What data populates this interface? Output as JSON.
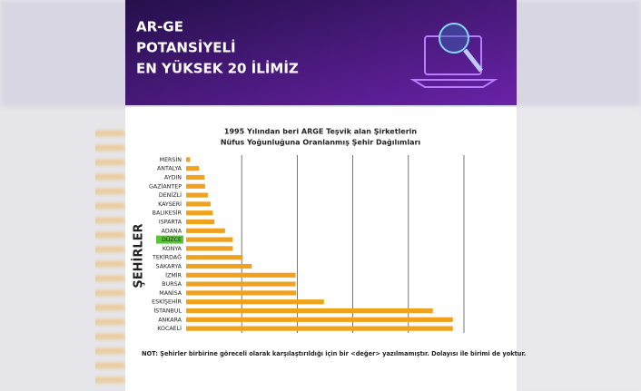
{
  "header": {
    "title": [
      "AR-GE",
      "POTANSİYELİ",
      "EN YÜKSEK 20 İLİMİZ"
    ]
  },
  "chart_data": {
    "type": "hbar",
    "title": [
      "1995 Yılından beri ARGE Teşvik alan Şirketlerin",
      "Nüfus Yoğunluğuna Oranlanmış Şehir Dağılımları"
    ],
    "y_label": "ŞEHİRLER",
    "categories": [
      "MERSİN",
      "ANTALYA",
      "AYDIN",
      "GAZİANTEP",
      "DENİZLİ",
      "KAYSERİ",
      "BALIKESİR",
      "ISPARTA",
      "ADANA",
      "DÜZCE",
      "KONYA",
      "TEKİRDAĞ",
      "SAKARYA",
      "İZMİR",
      "BURSA",
      "MANİSA",
      "ESKİŞEHİR",
      "İSTANBUL",
      "ANKARA",
      "KOCAELİ"
    ],
    "values": [
      0.07,
      0.23,
      0.33,
      0.34,
      0.39,
      0.44,
      0.48,
      0.51,
      0.7,
      0.84,
      0.84,
      1.02,
      1.18,
      1.97,
      1.97,
      1.98,
      2.48,
      4.44,
      4.8,
      4.8
    ],
    "color": "#f0a21e",
    "label_highlight": {
      "index": 9,
      "color": "#5cc43c"
    },
    "xlim": [
      0,
      5
    ],
    "xticks": [
      1,
      2,
      3,
      4,
      5
    ],
    "grid": true,
    "note": "NOT: Şehirler birbirine göreceli olarak karşılaştırıldığı için bir <değer> yazılmamıştır. Dolayısı ile birimi de yoktur."
  }
}
